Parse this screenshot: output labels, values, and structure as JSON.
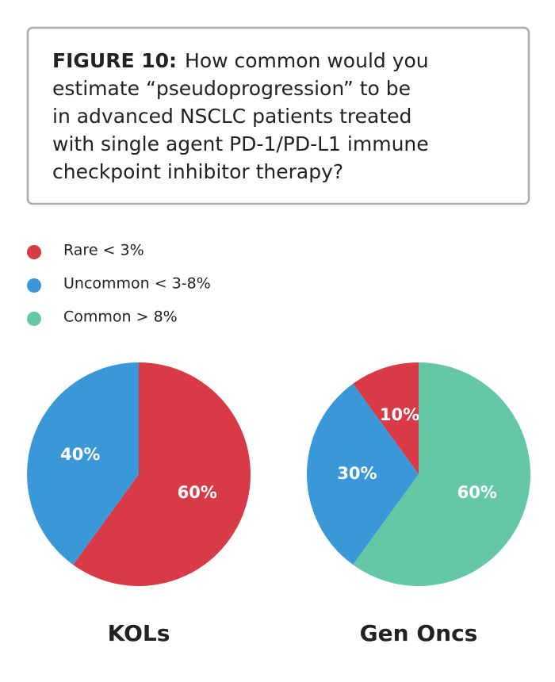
{
  "figure": {
    "label": "FIGURE 10:",
    "lines": [
      "How common would you",
      "estimate “pseudoprogression” to be",
      "in advanced NSCLC patients treated",
      "with single agent PD-1/PD-L1 immune",
      "checkpoint inhibitor therapy?"
    ]
  },
  "legend": {
    "labels": [
      "Rare < 3%",
      "Uncommon < 3-8%",
      "Common > 8%"
    ],
    "colors": [
      "#d93a48",
      "#3a97d8",
      "#64c8a4"
    ]
  },
  "chart_data": [
    {
      "type": "pie",
      "title": "KOLs",
      "values": [
        60,
        40,
        null
      ],
      "value_labels": [
        "60%",
        "40%",
        null
      ],
      "clockwise": true
    },
    {
      "type": "pie",
      "title": "Gen Oncs",
      "values": [
        10,
        30,
        60
      ],
      "value_labels": [
        "10%",
        "30%",
        "60%"
      ],
      "clockwise": false
    }
  ]
}
